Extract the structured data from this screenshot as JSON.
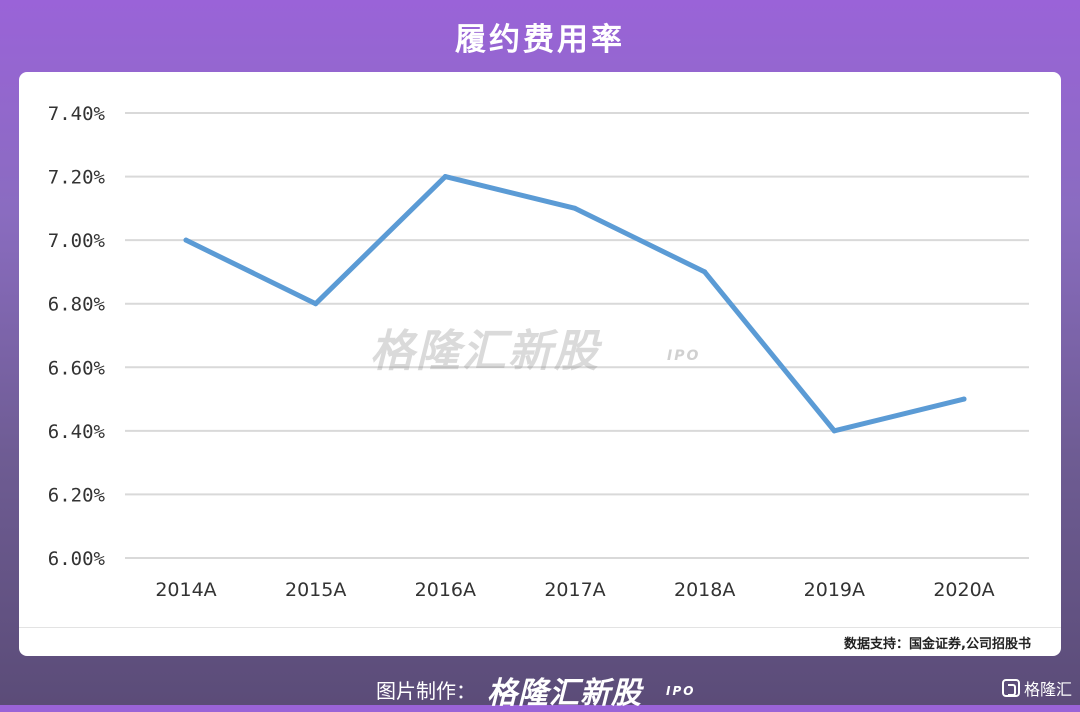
{
  "header": {
    "title": "履约费用率"
  },
  "chart_data": {
    "type": "line",
    "title": "",
    "xlabel": "",
    "ylabel": "",
    "categories": [
      "2014A",
      "2015A",
      "2016A",
      "2017A",
      "2018A",
      "2019A",
      "2020A"
    ],
    "values": [
      7.0,
      6.8,
      7.2,
      7.1,
      6.9,
      6.4,
      6.5
    ],
    "value_unit": "%",
    "ylim": [
      6.0,
      7.4
    ],
    "yticks": [
      "6.00%",
      "6.20%",
      "6.40%",
      "6.60%",
      "6.80%",
      "7.00%",
      "7.20%",
      "7.40%"
    ],
    "grid": true,
    "legend": "none",
    "line_color": "#5b9bd5"
  },
  "watermark": {
    "text": "格隆汇新股",
    "sub": "IPO"
  },
  "source": {
    "text": "数据支持：国金证券,公司招股书"
  },
  "footer": {
    "label": "图片制作：",
    "brand": "格隆汇新股",
    "brand_sub": "IPO",
    "corner_logo": "格隆汇"
  }
}
